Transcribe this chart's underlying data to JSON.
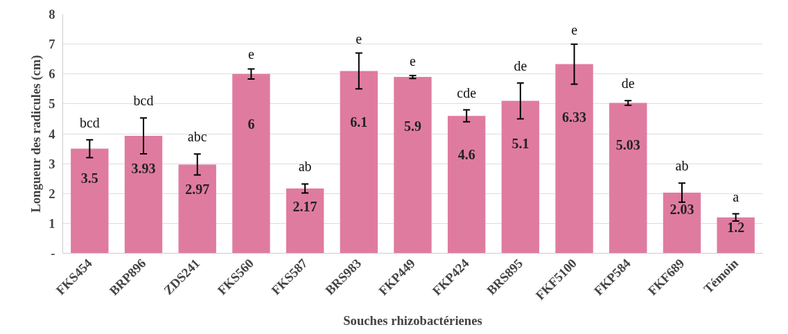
{
  "chart_data": {
    "type": "bar",
    "xlabel": "Souches rhizobactérienes",
    "ylabel": "Longueur des radicules (cm)",
    "categories": [
      "FKS454",
      "BRP896",
      "ZDS241",
      "FKS560",
      "FKS587",
      "BRS983",
      "FKP449",
      "FKP424",
      "BRS895",
      "FKF5100",
      "FKP584",
      "FKF689",
      "Témoin"
    ],
    "values": [
      3.5,
      3.93,
      2.97,
      6,
      2.17,
      6.1,
      5.9,
      4.6,
      5.1,
      6.33,
      5.03,
      2.03,
      1.2
    ],
    "errors": [
      0.3,
      0.6,
      0.35,
      0.17,
      0.15,
      0.6,
      0.05,
      0.2,
      0.6,
      0.67,
      0.08,
      0.32,
      0.12
    ],
    "color": "#e07ba0",
    "data_labels": true,
    "ylim": [
      0,
      8
    ],
    "yticks": [
      {
        "value": 0,
        "label": "-"
      },
      1,
      2,
      3,
      4,
      5,
      6,
      7,
      8
    ],
    "grid": "y",
    "annotations": [
      "bcd",
      "bcd",
      "abc",
      "e",
      "ab",
      "e",
      "e",
      "cde",
      "de",
      "e",
      "de",
      "ab",
      "a"
    ]
  }
}
